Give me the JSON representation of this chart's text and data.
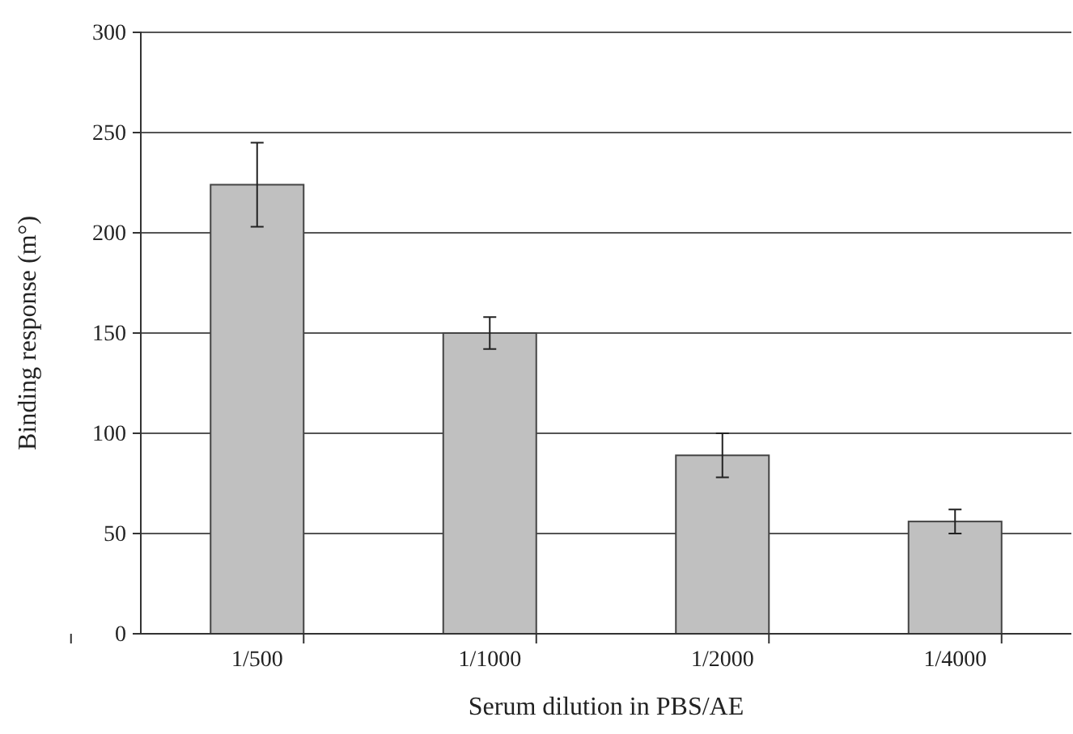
{
  "chart_data": {
    "type": "bar",
    "xlabel": "Serum dilution in PBS/AE",
    "ylabel": "Binding response (m°)",
    "categories": [
      "1/500",
      "1/1000",
      "1/2000",
      "1/4000"
    ],
    "values": [
      224,
      150,
      89,
      56
    ],
    "errors": [
      21,
      8,
      11,
      6
    ],
    "color": "#c0c0c0",
    "ylim": [
      0,
      300
    ],
    "yticks": [
      0,
      50,
      100,
      150,
      200,
      250,
      300
    ],
    "grid": "y"
  }
}
